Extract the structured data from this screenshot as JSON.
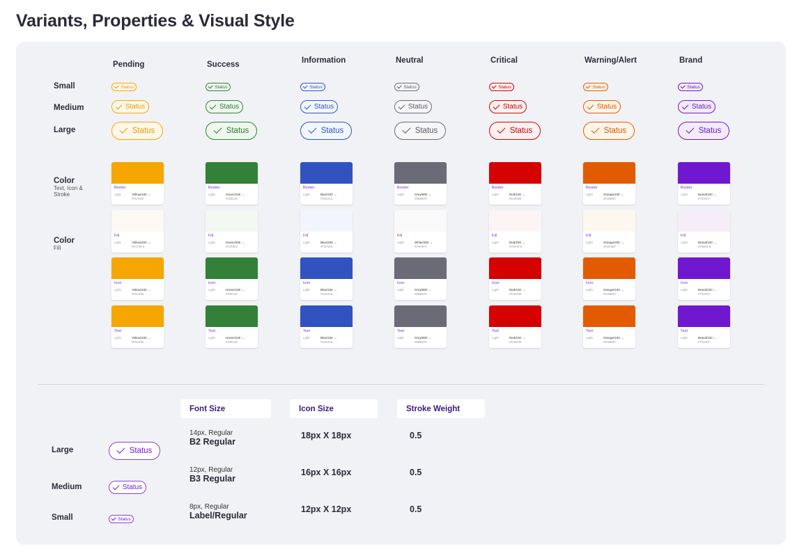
{
  "page": {
    "title": "Variants, Properties & Visual Style"
  },
  "columns": [
    {
      "name": "Pending",
      "border": "#F5A600",
      "text": "#E39A00",
      "fill": "#FFF8EA"
    },
    {
      "name": "Success",
      "border": "#338138",
      "text": "#2E7A33",
      "fill": "#EEF6EE"
    },
    {
      "name": "Information",
      "border": "#3153C0",
      "text": "#3153C0",
      "fill": "#F2F6FF"
    },
    {
      "name": "Neutral",
      "border": "#6B6B78",
      "text": "#5A5A66",
      "fill": "#F6F6F7"
    },
    {
      "name": "Critical",
      "border": "#D40300",
      "text": "#C40300",
      "fill": "#FDF0F0"
    },
    {
      "name": "Warning/Alert",
      "border": "#E35B00",
      "text": "#D85A00",
      "fill": "#FDF4EA"
    },
    {
      "name": "Brand",
      "border": "#7018CF",
      "text": "#6B1ACB",
      "fill": "#F2EBF8"
    }
  ],
  "badge_text": "Status",
  "size_rows": {
    "small": "Small",
    "medium": "Medium",
    "large": "Large"
  },
  "color_section": {
    "label_1": "Color",
    "sub_1": "Text, Icon & Stroke",
    "label_2": "Color",
    "sub_2": "Fill"
  },
  "swatch_rows": [
    {
      "category": "Border",
      "mode": "Light",
      "tokens": [
        "Yellow/100 →",
        "Green/100 →",
        "Blue/100 →",
        "Grey/800 →",
        "Red/100 →",
        "Orange/100 →",
        "Brand/100 →"
      ],
      "hex": [
        "#F5A600",
        "#338138",
        "#3153C0",
        "#6B6B78",
        "#D40300",
        "#E35B00",
        "#7018CF"
      ]
    },
    {
      "category": "Fill",
      "mode": "Light",
      "tokens": [
        "Yellow/200 →",
        "Green/200 →",
        "Blue/200 →",
        "White/200 →",
        "Red/200 →",
        "Orange/200 →",
        "Brand/100 →"
      ],
      "hex": [
        "#FCF8F3",
        "#F3F8F3",
        "#F2F5FE",
        "#F9F9FA",
        "#FDF5F5",
        "#FDF8EF",
        "#F5EEF8"
      ]
    },
    {
      "category": "Icon",
      "mode": "Light",
      "tokens": [
        "Yellow/100 →",
        "Green/100 →",
        "Blue/100 →",
        "Grey/800 →",
        "Red/100 →",
        "Orange/100 →",
        "Brand/100 →"
      ],
      "hex": [
        "#F5A600",
        "#338138",
        "#3153C0",
        "#6B6B78",
        "#D40300",
        "#E35B00",
        "#7018CF"
      ]
    },
    {
      "category": "Text",
      "mode": "Light",
      "tokens": [
        "Yellow/100 →",
        "Green/100 →",
        "Blue/100 →",
        "Grey/800 →",
        "Red/100 →",
        "Orange/100 →",
        "Brand/100 →"
      ],
      "hex": [
        "#F5A600",
        "#338138",
        "#3153C0",
        "#6B6B78",
        "#D40300",
        "#E35B00",
        "#7018CF"
      ]
    }
  ],
  "specs": {
    "headers": {
      "font_size": "Font Size",
      "icon_size": "Icon Size",
      "stroke_weight": "Stroke Weight"
    },
    "rows": [
      {
        "size": "Large",
        "font_small": "14px, Regular",
        "font_name": "B2 Regular",
        "icon": "18px X 18px",
        "stroke": "0.5"
      },
      {
        "size": "Medium",
        "font_small": "12px, Regular",
        "font_name": "B3 Regular",
        "icon": "16px X 16px",
        "stroke": "0.5"
      },
      {
        "size": "Small",
        "font_small": "8px, Regular",
        "font_name": "Label/Regular",
        "icon": "12px X 12px",
        "stroke": "0.5"
      }
    ],
    "brand_border": "#8A3FD6",
    "brand_text": "#7018CF"
  }
}
